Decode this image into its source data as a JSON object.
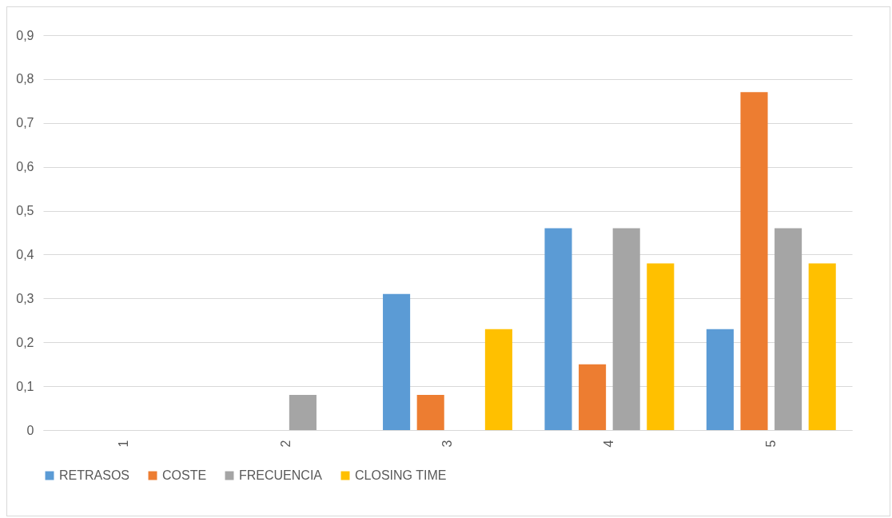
{
  "chart_data": {
    "type": "bar",
    "categories": [
      "1",
      "2",
      "3",
      "4",
      "5"
    ],
    "series": [
      {
        "name": "RETRASOS",
        "color": "#5b9bd5",
        "values": [
          0,
          0,
          0.31,
          0.46,
          0.23
        ]
      },
      {
        "name": "COSTE",
        "color": "#ed7d31",
        "values": [
          0,
          0,
          0.08,
          0.15,
          0.77
        ]
      },
      {
        "name": "FRECUENCIA",
        "color": "#a5a5a5",
        "values": [
          0,
          0.08,
          0,
          0.46,
          0.46
        ]
      },
      {
        "name": "CLOSING TIME",
        "color": "#ffc000",
        "values": [
          0,
          0,
          0.23,
          0.38,
          0.38
        ]
      }
    ],
    "ylim": [
      0,
      0.9
    ],
    "yticks": [
      0,
      {
        "value": 0.1,
        "label": "0,1"
      },
      {
        "value": 0.2,
        "label": "0,2"
      },
      {
        "value": 0.3,
        "label": "0,3"
      },
      {
        "value": 0.4,
        "label": "0,4"
      },
      {
        "value": 0.5,
        "label": "0,5"
      },
      {
        "value": 0.6,
        "label": "0,6"
      },
      {
        "value": 0.7,
        "label": "0,7"
      },
      {
        "value": 0.8,
        "label": "0,8"
      },
      {
        "value": 0.9,
        "label": "0,9"
      }
    ],
    "grid": "y",
    "legend": "bottom"
  }
}
